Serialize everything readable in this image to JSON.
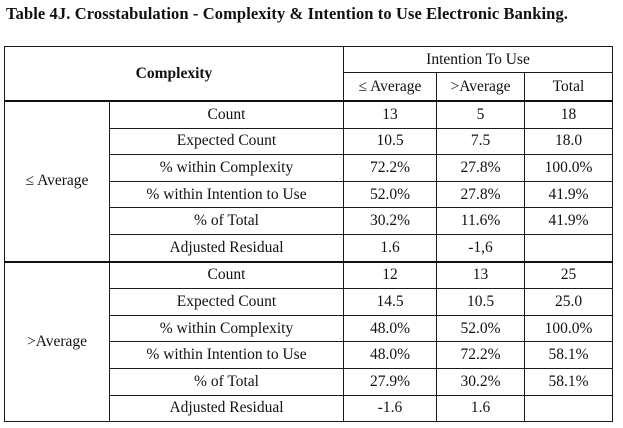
{
  "caption": "Table 4J. Crosstabulation - Complexity & Intention to Use Electronic Banking.",
  "header": {
    "row_label": "Complexity",
    "col_group": "Intention To Use",
    "columns": [
      "≤ Average",
      ">Average",
      "Total"
    ]
  },
  "groups": [
    {
      "label": "≤ Average",
      "rows": [
        {
          "stat": "Count",
          "values": [
            "13",
            "5",
            "18"
          ]
        },
        {
          "stat": "Expected Count",
          "values": [
            "10.5",
            "7.5",
            "18.0"
          ]
        },
        {
          "stat": "% within Complexity",
          "values": [
            "72.2%",
            "27.8%",
            "100.0%"
          ]
        },
        {
          "stat": "% within Intention to Use",
          "values": [
            "52.0%",
            "27.8%",
            "41.9%"
          ]
        },
        {
          "stat": "% of Total",
          "values": [
            "30.2%",
            "11.6%",
            "41.9%"
          ]
        },
        {
          "stat": "Adjusted Residual",
          "values": [
            "1.6",
            "-1,6",
            ""
          ]
        }
      ]
    },
    {
      "label": ">Average",
      "rows": [
        {
          "stat": "Count",
          "values": [
            "12",
            "13",
            "25"
          ]
        },
        {
          "stat": "Expected Count",
          "values": [
            "14.5",
            "10.5",
            "25.0"
          ]
        },
        {
          "stat": "% within Complexity",
          "values": [
            "48.0%",
            "52.0%",
            "100.0%"
          ]
        },
        {
          "stat": "% within Intention to Use",
          "values": [
            "48.0%",
            "72.2%",
            "58.1%"
          ]
        },
        {
          "stat": "% of Total",
          "values": [
            "27.9%",
            "30.2%",
            "58.1%"
          ]
        },
        {
          "stat": "Adjusted Residual",
          "values": [
            "-1.6",
            "1.6",
            ""
          ]
        }
      ]
    }
  ]
}
